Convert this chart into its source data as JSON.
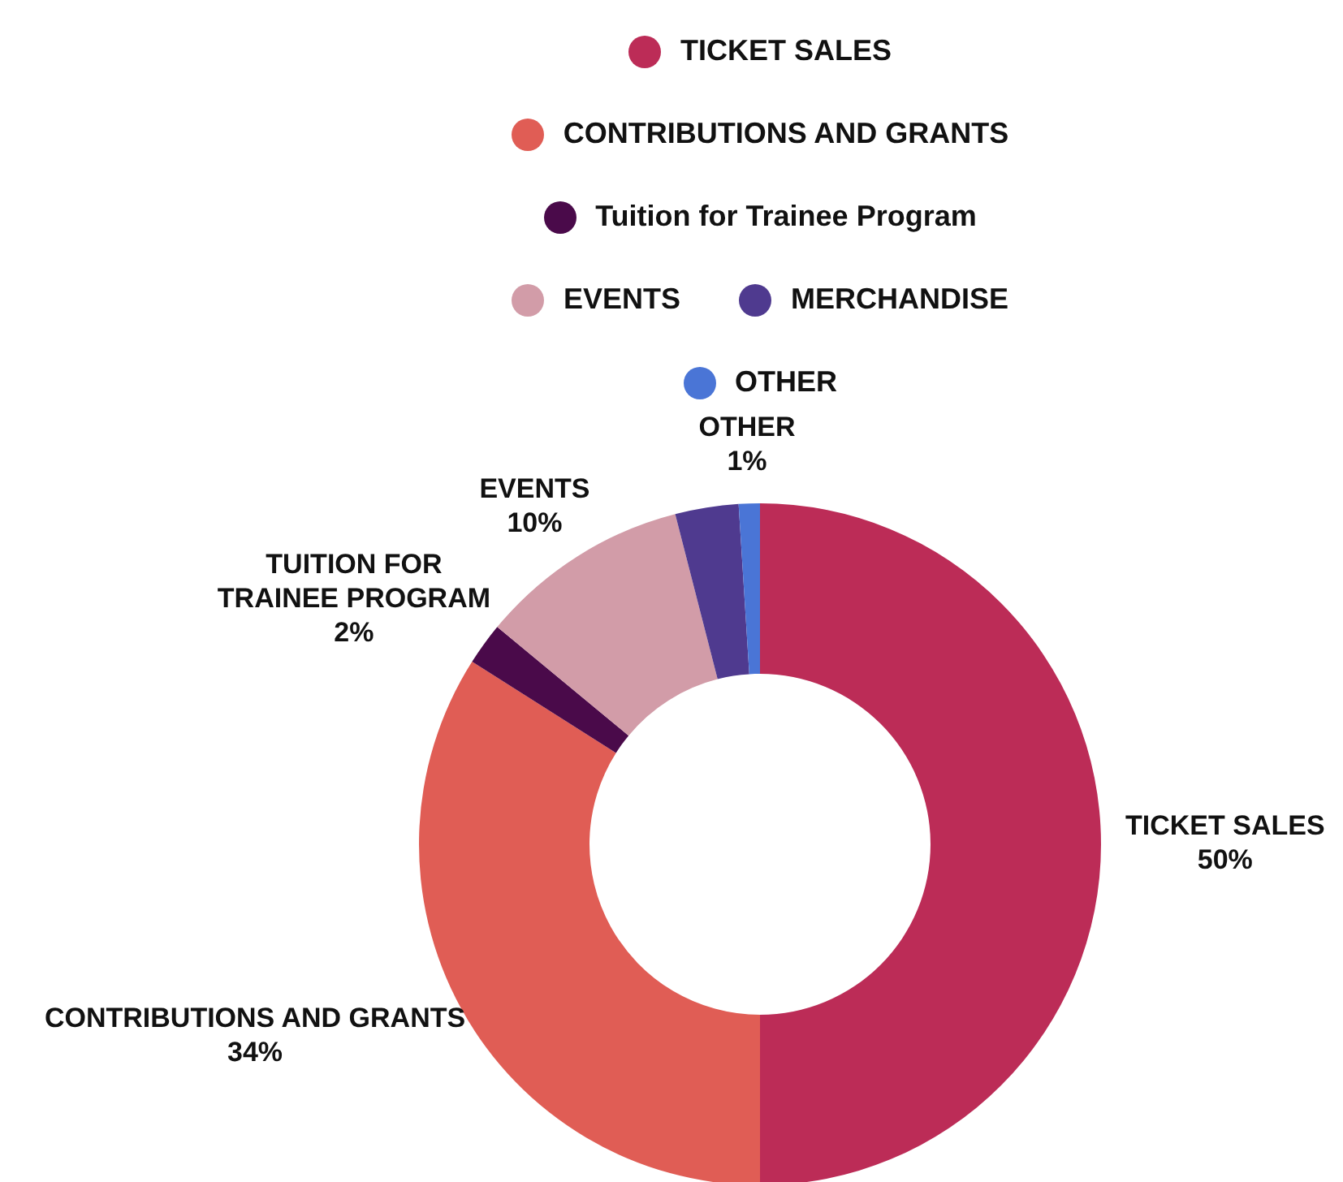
{
  "chart_data": {
    "type": "donut",
    "legend": "top",
    "categories": [
      "TICKET SALES",
      "CONTRIBUTIONS AND GRANTS",
      "Tuition for Trainee Program",
      "EVENTS",
      "MERCHANDISE",
      "OTHER"
    ],
    "values": [
      50,
      34,
      2,
      10,
      3,
      1
    ],
    "colors": [
      "#bc2c57",
      "#e05d55",
      "#4a0a4a",
      "#d29ca8",
      "#4f3a8f",
      "#4a75d6"
    ],
    "value_labels": [
      "TICKET SALES\n50%",
      "CONTRIBUTIONS AND GRANTS\n34%",
      "TUITION FOR\nTRAINEE PROGRAM\n2%",
      "EVENTS\n10%",
      null,
      "OTHER\n1%"
    ]
  }
}
